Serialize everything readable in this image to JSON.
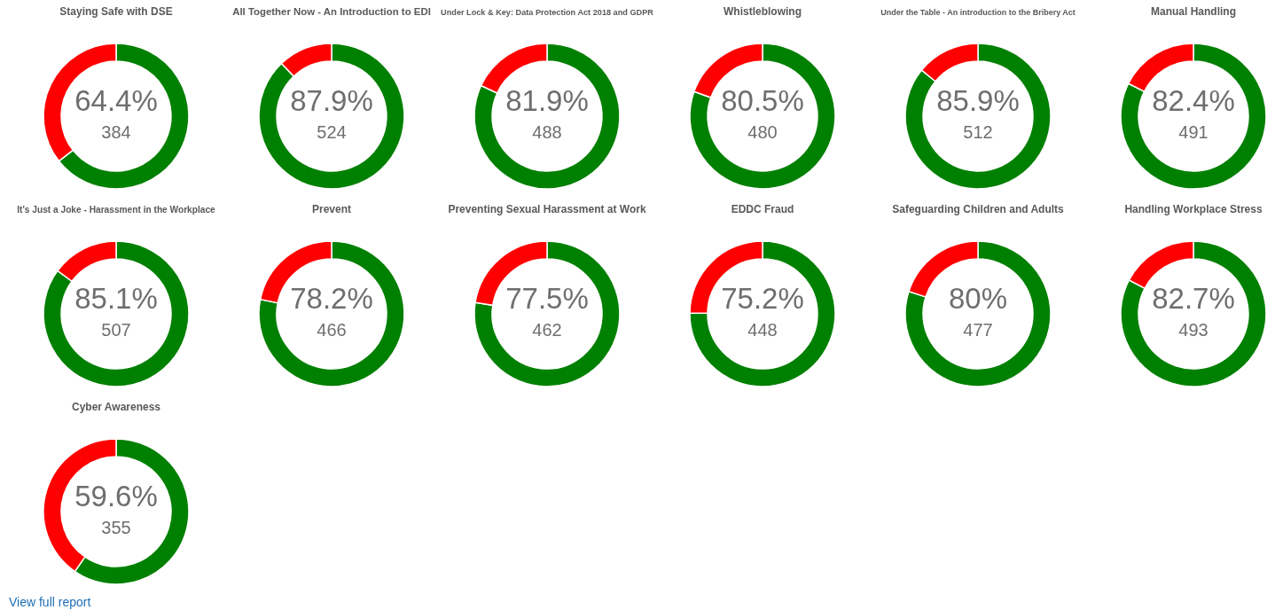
{
  "chart_data": [
    {
      "type": "donut",
      "title": "Staying Safe with DSE",
      "categories": [
        null,
        null
      ],
      "values": [
        64.4,
        35.6
      ],
      "colors": [
        "#008000",
        "#ff0000"
      ],
      "annotations": [
        "64.4%",
        "384"
      ]
    },
    {
      "type": "donut",
      "title": "All Together Now - An Introduction to EDI",
      "categories": [
        null,
        null
      ],
      "values": [
        87.9,
        12.1
      ],
      "colors": [
        "#008000",
        "#ff0000"
      ],
      "annotations": [
        "87.9%",
        "524"
      ]
    },
    {
      "type": "donut",
      "title": "Under Lock & Key: Data Protection Act 2018 and GDPR",
      "categories": [
        null,
        null
      ],
      "values": [
        81.9,
        18.1
      ],
      "colors": [
        "#008000",
        "#ff0000"
      ],
      "annotations": [
        "81.9%",
        "488"
      ]
    },
    {
      "type": "donut",
      "title": "Whistleblowing",
      "categories": [
        null,
        null
      ],
      "values": [
        80.5,
        19.5
      ],
      "colors": [
        "#008000",
        "#ff0000"
      ],
      "annotations": [
        "80.5%",
        "480"
      ]
    },
    {
      "type": "donut",
      "title": "Under the Table - An introduction to the Bribery Act",
      "categories": [
        null,
        null
      ],
      "values": [
        85.9,
        14.1
      ],
      "colors": [
        "#008000",
        "#ff0000"
      ],
      "annotations": [
        "85.9%",
        "512"
      ]
    },
    {
      "type": "donut",
      "title": "Manual Handling",
      "categories": [
        null,
        null
      ],
      "values": [
        82.4,
        17.6
      ],
      "colors": [
        "#008000",
        "#ff0000"
      ],
      "annotations": [
        "82.4%",
        "491"
      ]
    },
    {
      "type": "donut",
      "title": "It's Just a Joke - Harassment in the Workplace",
      "categories": [
        null,
        null
      ],
      "values": [
        85.1,
        14.9
      ],
      "colors": [
        "#008000",
        "#ff0000"
      ],
      "annotations": [
        "85.1%",
        "507"
      ]
    },
    {
      "type": "donut",
      "title": "Prevent",
      "categories": [
        null,
        null
      ],
      "values": [
        78.2,
        21.8
      ],
      "colors": [
        "#008000",
        "#ff0000"
      ],
      "annotations": [
        "78.2%",
        "466"
      ]
    },
    {
      "type": "donut",
      "title": "Preventing Sexual Harassment at Work",
      "categories": [
        null,
        null
      ],
      "values": [
        77.5,
        22.5
      ],
      "colors": [
        "#008000",
        "#ff0000"
      ],
      "annotations": [
        "77.5%",
        "462"
      ]
    },
    {
      "type": "donut",
      "title": "EDDC Fraud",
      "categories": [
        null,
        null
      ],
      "values": [
        75.2,
        24.8
      ],
      "colors": [
        "#008000",
        "#ff0000"
      ],
      "annotations": [
        "75.2%",
        "448"
      ]
    },
    {
      "type": "donut",
      "title": "Safeguarding Children and Adults",
      "categories": [
        null,
        null
      ],
      "values": [
        80,
        20
      ],
      "colors": [
        "#008000",
        "#ff0000"
      ],
      "annotations": [
        "80%",
        "477"
      ]
    },
    {
      "type": "donut",
      "title": "Handling Workplace Stress",
      "categories": [
        null,
        null
      ],
      "values": [
        82.7,
        17.3
      ],
      "colors": [
        "#008000",
        "#ff0000"
      ],
      "annotations": [
        "82.7%",
        "493"
      ]
    },
    {
      "type": "donut",
      "title": "Cyber Awareness",
      "categories": [
        null,
        null
      ],
      "values": [
        59.6,
        40.4
      ],
      "colors": [
        "#008000",
        "#ff0000"
      ],
      "annotations": [
        "59.6%",
        "355",
        "View full report"
      ]
    }
  ]
}
